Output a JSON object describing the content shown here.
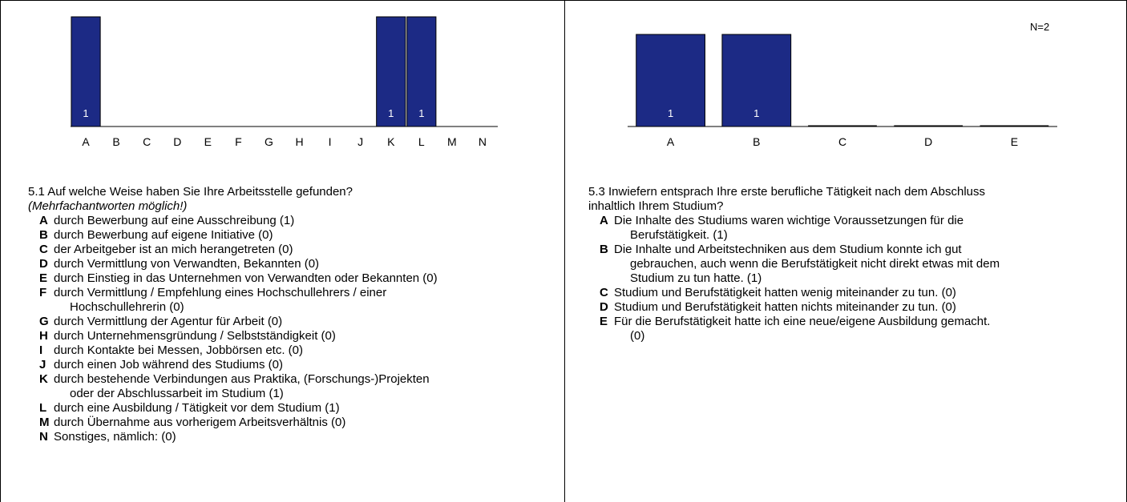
{
  "chart_data": [
    {
      "type": "bar",
      "categories": [
        "A",
        "B",
        "C",
        "D",
        "E",
        "F",
        "G",
        "H",
        "I",
        "J",
        "K",
        "L",
        "M",
        "N"
      ],
      "values": [
        1,
        0,
        0,
        0,
        0,
        0,
        0,
        0,
        0,
        0,
        1,
        1,
        0,
        0
      ],
      "value_labels": [
        "1",
        "",
        "",
        "",
        "",
        "",
        "",
        "",
        "",
        "",
        "1",
        "1",
        "",
        ""
      ],
      "n_label": "",
      "color": "#1c2a85",
      "grid": false,
      "legend": "none"
    },
    {
      "type": "bar",
      "categories": [
        "A",
        "B",
        "C",
        "D",
        "E"
      ],
      "values": [
        1,
        1,
        0,
        0,
        0
      ],
      "value_labels": [
        "1",
        "1",
        "",
        "",
        ""
      ],
      "n_label": "N=2",
      "color": "#1c2a85",
      "grid": false,
      "legend": "none"
    }
  ],
  "q51": {
    "title": "5.1 Auf welche Weise haben Sie Ihre Arbeitsstelle gefunden?",
    "note": "(Mehrfachantworten möglich!)",
    "options": [
      {
        "key": "A",
        "text": "durch Bewerbung auf eine Ausschreibung (1)"
      },
      {
        "key": "B",
        "text": "durch Bewerbung auf eigene Initiative (0)"
      },
      {
        "key": "C",
        "text": "der Arbeitgeber ist an mich herangetreten (0)"
      },
      {
        "key": "D",
        "text": "durch Vermittlung von Verwandten, Bekannten (0)"
      },
      {
        "key": "E",
        "text": "durch Einstieg in das Unternehmen von Verwandten oder Bekannten (0)"
      },
      {
        "key": "F",
        "text": "durch Vermittlung / Empfehlung eines Hochschullehrers / einer",
        "text2": "Hochschullehrerin (0)"
      },
      {
        "key": "G",
        "text": "durch Vermittlung der Agentur für Arbeit (0)"
      },
      {
        "key": "H",
        "text": "durch Unternehmensgründung / Selbstständigkeit (0)"
      },
      {
        "key": "I",
        "text": "durch Kontakte bei Messen, Jobbörsen etc. (0)"
      },
      {
        "key": "J",
        "text": "durch einen Job während des Studiums (0)"
      },
      {
        "key": "K",
        "text": "durch bestehende Verbindungen aus Praktika, (Forschungs-)Projekten",
        "text2": "oder der Abschlussarbeit im Studium (1)"
      },
      {
        "key": "L",
        "text": "durch eine Ausbildung / Tätigkeit vor dem Studium (1)"
      },
      {
        "key": "M",
        "text": "durch Übernahme aus vorherigem Arbeitsverhältnis (0)"
      },
      {
        "key": "N",
        "text": "Sonstiges, nämlich: (0)"
      }
    ]
  },
  "q53": {
    "title": "5.3 Inwiefern entsprach Ihre erste berufliche Tätigkeit nach dem Abschluss",
    "title2": "inhaltlich Ihrem Studium?",
    "options": [
      {
        "key": "A",
        "text": "Die Inhalte des Studiums waren wichtige Voraussetzungen für die",
        "text2": "Berufstätigkeit. (1)"
      },
      {
        "key": "B",
        "text": "Die Inhalte und Arbeitstechniken aus dem Studium konnte ich gut",
        "text2": "gebrauchen, auch wenn die Berufstätigkeit nicht direkt etwas mit dem",
        "text3": "Studium zu tun hatte. (1)"
      },
      {
        "key": "C",
        "text": "Studium und Berufstätigkeit hatten wenig miteinander zu tun. (0)"
      },
      {
        "key": "D",
        "text": "Studium und Berufstätigkeit hatten nichts miteinander zu tun. (0)"
      },
      {
        "key": "E",
        "text": "Für die Berufstätigkeit hatte ich eine neue/eigene Ausbildung gemacht.",
        "text2": "(0)"
      }
    ]
  }
}
